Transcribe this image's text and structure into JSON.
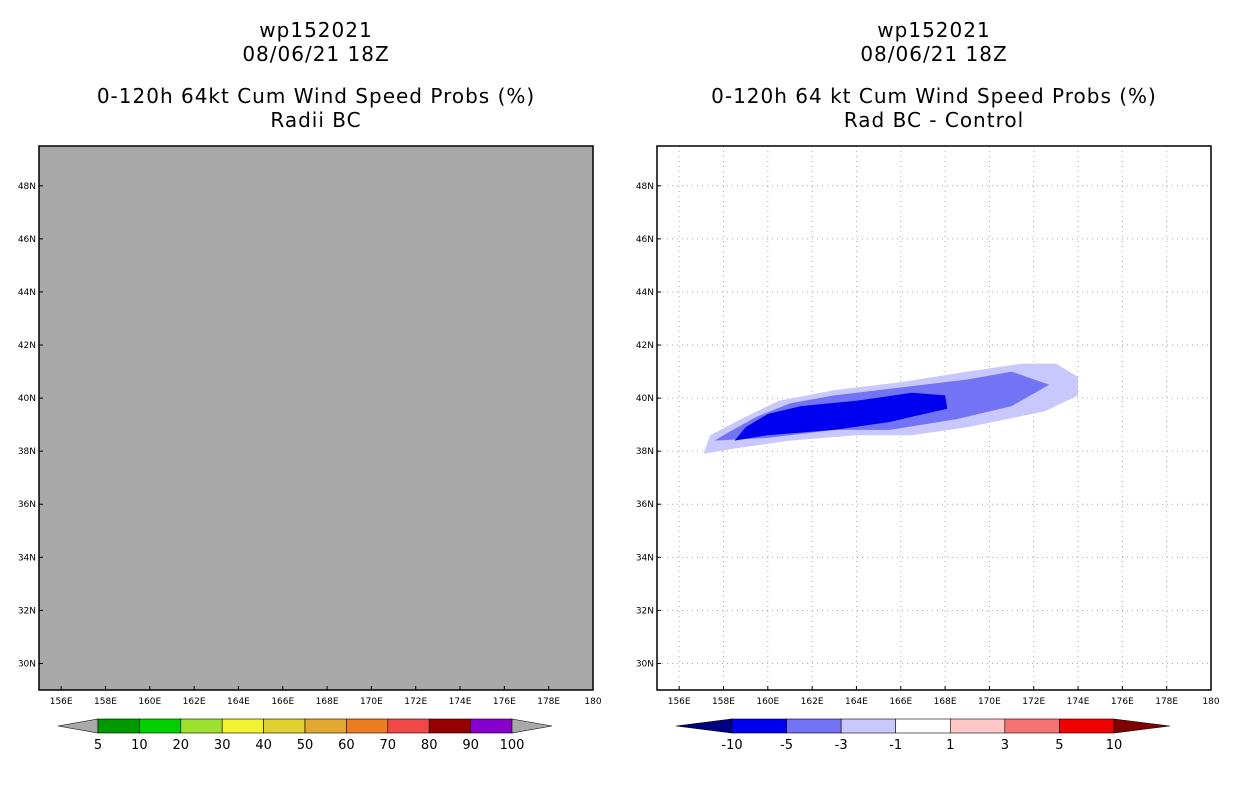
{
  "chart_data": [
    {
      "type": "heatmap",
      "storm_id": "wp152021",
      "date": "08/06/21 18Z",
      "title": "0-120h 64kt Cum Wind Speed Probs (%)",
      "subtitle": "Radii BC",
      "x_ticks": [
        "156E",
        "158E",
        "160E",
        "162E",
        "164E",
        "166E",
        "168E",
        "170E",
        "172E",
        "174E",
        "176E",
        "178E",
        "180"
      ],
      "y_ticks": [
        "30N",
        "32N",
        "34N",
        "36N",
        "38N",
        "40N",
        "42N",
        "44N",
        "46N",
        "48N"
      ],
      "xlim": [
        155,
        180
      ],
      "ylim": [
        29,
        49.5
      ],
      "field_background": "#a9a9a9",
      "note": "No probabilities shown (entire domain shaded gray)",
      "colorbar": {
        "labels": [
          "5",
          "10",
          "20",
          "30",
          "40",
          "50",
          "60",
          "70",
          "80",
          "90",
          "100"
        ],
        "colors": [
          "#009a00",
          "#00d000",
          "#9ee030",
          "#f2f230",
          "#e0d030",
          "#e0a830",
          "#ee7c20",
          "#f04848",
          "#960000",
          "#8800cc"
        ],
        "end_color": "#a9a9a9"
      }
    },
    {
      "type": "heatmap",
      "storm_id": "wp152021",
      "date": "08/06/21 18Z",
      "title": "0-120h 64 kt Cum Wind Speed Probs (%)",
      "subtitle": "Rad BC - Control",
      "x_ticks": [
        "156E",
        "158E",
        "160E",
        "162E",
        "164E",
        "166E",
        "168E",
        "170E",
        "172E",
        "174E",
        "176E",
        "178E",
        "180"
      ],
      "y_ticks": [
        "30N",
        "32N",
        "34N",
        "36N",
        "38N",
        "40N",
        "42N",
        "44N",
        "46N",
        "48N"
      ],
      "xlim": [
        155,
        180
      ],
      "ylim": [
        29,
        49.5
      ],
      "grid": true,
      "contours": [
        {
          "level": "-1 to -3",
          "color": "#c8c8ff",
          "lonlat": [
            [
              157.1,
              37.9
            ],
            [
              158.5,
              38.1
            ],
            [
              161,
              38.4
            ],
            [
              164,
              38.6
            ],
            [
              166.5,
              38.6
            ],
            [
              169,
              38.9
            ],
            [
              172.5,
              39.5
            ],
            [
              174,
              40.1
            ],
            [
              174,
              40.8
            ],
            [
              173,
              41.3
            ],
            [
              171.5,
              41.3
            ],
            [
              169,
              41
            ],
            [
              166,
              40.6
            ],
            [
              163,
              40.3
            ],
            [
              160.5,
              39.9
            ],
            [
              159,
              39.3
            ],
            [
              157.4,
              38.6
            ]
          ]
        },
        {
          "level": "-3 to -5",
          "color": "#7373f5",
          "lonlat": [
            [
              157.6,
              38.4
            ],
            [
              160,
              38.5
            ],
            [
              163,
              38.8
            ],
            [
              165.5,
              38.8
            ],
            [
              168.5,
              39.2
            ],
            [
              171,
              39.7
            ],
            [
              172.7,
              40.5
            ],
            [
              171,
              41
            ],
            [
              169,
              40.7
            ],
            [
              166,
              40.4
            ],
            [
              163,
              40.1
            ],
            [
              161,
              39.8
            ],
            [
              159.5,
              39.3
            ],
            [
              158.2,
              38.7
            ]
          ]
        },
        {
          "level": "-5 to -10",
          "color": "#0000f0",
          "lonlat": [
            [
              158.5,
              38.4
            ],
            [
              160,
              38.6
            ],
            [
              163,
              38.8
            ],
            [
              165.5,
              39.1
            ],
            [
              166.5,
              39.3
            ],
            [
              168.1,
              39.6
            ],
            [
              168,
              40.1
            ],
            [
              166.5,
              40.2
            ],
            [
              164,
              39.9
            ],
            [
              161.5,
              39.7
            ],
            [
              160,
              39.4
            ],
            [
              159,
              38.9
            ]
          ]
        }
      ],
      "colorbar": {
        "labels": [
          "-10",
          "-5",
          "-3",
          "-1",
          "1",
          "3",
          "5",
          "10"
        ],
        "colors": [
          "#0000f0",
          "#7373f5",
          "#c8c8ff",
          "#ffffff",
          "#ffc8c8",
          "#f57373",
          "#f00000"
        ],
        "low_end_color": "#000080",
        "high_end_color": "#800000"
      }
    }
  ]
}
